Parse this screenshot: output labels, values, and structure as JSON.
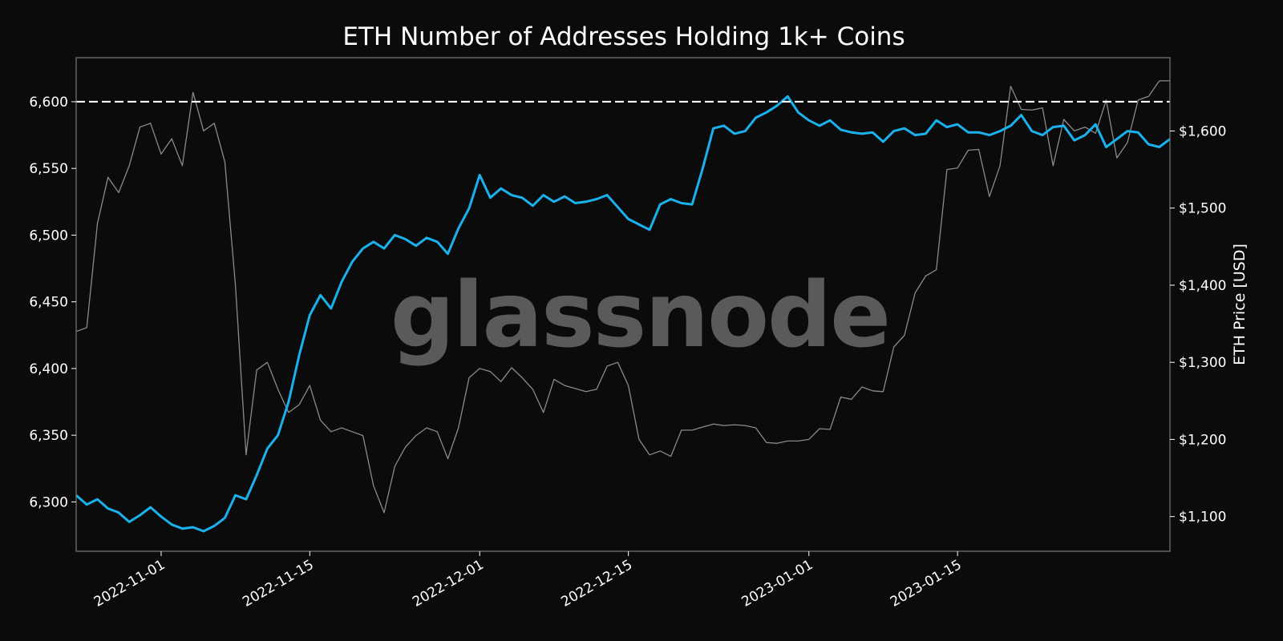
{
  "chart_data": {
    "type": "line",
    "title": "ETH Number of Addresses Holding 1k+ Coins",
    "watermark": "glassnode",
    "xlabel": "",
    "ylabel": "",
    "y2label": "ETH Price [USD]",
    "xlim": [
      "2022-10-24",
      "2023-02-04"
    ],
    "ylim": [
      6263,
      6633
    ],
    "y2lim": [
      1055,
      1695
    ],
    "x_ticks": [
      "2022-11-01",
      "2022-11-15",
      "2022-12-01",
      "2022-12-15",
      "2023-01-01",
      "2023-01-15"
    ],
    "y_ticks": [
      6300,
      6350,
      6400,
      6450,
      6500,
      6550,
      6600
    ],
    "y_tick_labels": [
      "6,300",
      "6,350",
      "6,400",
      "6,450",
      "6,500",
      "6,550",
      "6,600"
    ],
    "y2_ticks": [
      1100,
      1200,
      1300,
      1400,
      1500,
      1600
    ],
    "y2_tick_labels": [
      "$1,100",
      "$1,200",
      "$1,300",
      "$1,400",
      "$1,500",
      "$1,600"
    ],
    "reference_line": {
      "y": 6600,
      "style": "dashed",
      "color": "#ffffff"
    },
    "grid": false,
    "colors": {
      "background": "#0b0b0b",
      "addresses": "#1ab1ed",
      "price": "#8a8a8a",
      "axes": "#777777"
    },
    "series": [
      {
        "axis": "left",
        "points": [
          [
            "2022-10-24",
            6305
          ],
          [
            "2022-10-25",
            6298
          ],
          [
            "2022-10-26",
            6302
          ],
          [
            "2022-10-27",
            6295
          ],
          [
            "2022-10-28",
            6292
          ],
          [
            "2022-10-29",
            6285
          ],
          [
            "2022-10-30",
            6290
          ],
          [
            "2022-10-31",
            6296
          ],
          [
            "2022-11-01",
            6289
          ],
          [
            "2022-11-02",
            6283
          ],
          [
            "2022-11-03",
            6280
          ],
          [
            "2022-11-04",
            6281
          ],
          [
            "2022-11-05",
            6278
          ],
          [
            "2022-11-06",
            6282
          ],
          [
            "2022-11-07",
            6288
          ],
          [
            "2022-11-08",
            6305
          ],
          [
            "2022-11-09",
            6302
          ],
          [
            "2022-11-10",
            6320
          ],
          [
            "2022-11-11",
            6340
          ],
          [
            "2022-11-12",
            6350
          ],
          [
            "2022-11-13",
            6375
          ],
          [
            "2022-11-14",
            6410
          ],
          [
            "2022-11-15",
            6440
          ],
          [
            "2022-11-16",
            6455
          ],
          [
            "2022-11-17",
            6445
          ],
          [
            "2022-11-18",
            6465
          ],
          [
            "2022-11-19",
            6480
          ],
          [
            "2022-11-20",
            6490
          ],
          [
            "2022-11-21",
            6495
          ],
          [
            "2022-11-22",
            6490
          ],
          [
            "2022-11-23",
            6500
          ],
          [
            "2022-11-24",
            6497
          ],
          [
            "2022-11-25",
            6492
          ],
          [
            "2022-11-26",
            6498
          ],
          [
            "2022-11-27",
            6495
          ],
          [
            "2022-11-28",
            6486
          ],
          [
            "2022-11-29",
            6505
          ],
          [
            "2022-11-30",
            6520
          ],
          [
            "2022-12-01",
            6545
          ],
          [
            "2022-12-02",
            6528
          ],
          [
            "2022-12-03",
            6535
          ],
          [
            "2022-12-04",
            6530
          ],
          [
            "2022-12-05",
            6528
          ],
          [
            "2022-12-06",
            6522
          ],
          [
            "2022-12-07",
            6530
          ],
          [
            "2022-12-08",
            6525
          ],
          [
            "2022-12-09",
            6529
          ],
          [
            "2022-12-10",
            6524
          ],
          [
            "2022-12-11",
            6525
          ],
          [
            "2022-12-12",
            6527
          ],
          [
            "2022-12-13",
            6530
          ],
          [
            "2022-12-14",
            6521
          ],
          [
            "2022-12-15",
            6512
          ],
          [
            "2022-12-16",
            6508
          ],
          [
            "2022-12-17",
            6504
          ],
          [
            "2022-12-18",
            6523
          ],
          [
            "2022-12-19",
            6527
          ],
          [
            "2022-12-20",
            6524
          ],
          [
            "2022-12-21",
            6523
          ],
          [
            "2022-12-22",
            6550
          ],
          [
            "2022-12-23",
            6580
          ],
          [
            "2022-12-24",
            6582
          ],
          [
            "2022-12-25",
            6576
          ],
          [
            "2022-12-26",
            6578
          ],
          [
            "2022-12-27",
            6588
          ],
          [
            "2022-12-28",
            6592
          ],
          [
            "2022-12-29",
            6597
          ],
          [
            "2022-12-30",
            6604
          ],
          [
            "2022-12-31",
            6592
          ],
          [
            "2023-01-01",
            6586
          ],
          [
            "2023-01-02",
            6582
          ],
          [
            "2023-01-03",
            6586
          ],
          [
            "2023-01-04",
            6579
          ],
          [
            "2023-01-05",
            6577
          ],
          [
            "2023-01-06",
            6576
          ],
          [
            "2023-01-07",
            6577
          ],
          [
            "2023-01-08",
            6570
          ],
          [
            "2023-01-09",
            6578
          ],
          [
            "2023-01-10",
            6580
          ],
          [
            "2023-01-11",
            6575
          ],
          [
            "2023-01-12",
            6576
          ],
          [
            "2023-01-13",
            6586
          ],
          [
            "2023-01-14",
            6581
          ],
          [
            "2023-01-15",
            6583
          ],
          [
            "2023-01-16",
            6577
          ],
          [
            "2023-01-17",
            6577
          ],
          [
            "2023-01-18",
            6575
          ],
          [
            "2023-01-19",
            6578
          ],
          [
            "2023-01-20",
            6582
          ],
          [
            "2023-01-21",
            6590
          ],
          [
            "2023-01-22",
            6578
          ],
          [
            "2023-01-23",
            6575
          ],
          [
            "2023-01-24",
            6581
          ],
          [
            "2023-01-25",
            6582
          ],
          [
            "2023-01-26",
            6571
          ],
          [
            "2023-01-27",
            6575
          ],
          [
            "2023-01-28",
            6583
          ],
          [
            "2023-01-29",
            6566
          ],
          [
            "2023-01-30",
            6572
          ],
          [
            "2023-01-31",
            6578
          ],
          [
            "2023-02-01",
            6577
          ],
          [
            "2023-02-02",
            6568
          ],
          [
            "2023-02-03",
            6566
          ],
          [
            "2023-02-04",
            6572
          ]
        ]
      },
      {
        "axis": "right",
        "points": [
          [
            "2022-10-24",
            1340
          ],
          [
            "2022-10-25",
            1345
          ],
          [
            "2022-10-26",
            1480
          ],
          [
            "2022-10-27",
            1540
          ],
          [
            "2022-10-28",
            1520
          ],
          [
            "2022-10-29",
            1555
          ],
          [
            "2022-10-30",
            1605
          ],
          [
            "2022-10-31",
            1610
          ],
          [
            "2022-11-01",
            1570
          ],
          [
            "2022-11-02",
            1590
          ],
          [
            "2022-11-03",
            1555
          ],
          [
            "2022-11-04",
            1650
          ],
          [
            "2022-11-05",
            1600
          ],
          [
            "2022-11-06",
            1610
          ],
          [
            "2022-11-07",
            1560
          ],
          [
            "2022-11-08",
            1400
          ],
          [
            "2022-11-09",
            1180
          ],
          [
            "2022-11-10",
            1290
          ],
          [
            "2022-11-11",
            1300
          ],
          [
            "2022-11-12",
            1265
          ],
          [
            "2022-11-13",
            1235
          ],
          [
            "2022-11-14",
            1245
          ],
          [
            "2022-11-15",
            1270
          ],
          [
            "2022-11-16",
            1225
          ],
          [
            "2022-11-17",
            1210
          ],
          [
            "2022-11-18",
            1215
          ],
          [
            "2022-11-19",
            1210
          ],
          [
            "2022-11-20",
            1205
          ],
          [
            "2022-11-21",
            1140
          ],
          [
            "2022-11-22",
            1105
          ],
          [
            "2022-11-23",
            1165
          ],
          [
            "2022-11-24",
            1190
          ],
          [
            "2022-11-25",
            1205
          ],
          [
            "2022-11-26",
            1215
          ],
          [
            "2022-11-27",
            1210
          ],
          [
            "2022-11-28",
            1175
          ],
          [
            "2022-11-29",
            1215
          ],
          [
            "2022-11-30",
            1280
          ],
          [
            "2022-12-01",
            1292
          ],
          [
            "2022-12-02",
            1288
          ],
          [
            "2022-12-03",
            1275
          ],
          [
            "2022-12-04",
            1293
          ],
          [
            "2022-12-05",
            1280
          ],
          [
            "2022-12-06",
            1265
          ],
          [
            "2022-12-07",
            1235
          ],
          [
            "2022-12-08",
            1278
          ],
          [
            "2022-12-09",
            1270
          ],
          [
            "2022-12-10",
            1266
          ],
          [
            "2022-12-11",
            1262
          ],
          [
            "2022-12-12",
            1265
          ],
          [
            "2022-12-13",
            1295
          ],
          [
            "2022-12-14",
            1300
          ],
          [
            "2022-12-15",
            1270
          ],
          [
            "2022-12-16",
            1200
          ],
          [
            "2022-12-17",
            1180
          ],
          [
            "2022-12-18",
            1185
          ],
          [
            "2022-12-19",
            1178
          ],
          [
            "2022-12-20",
            1212
          ],
          [
            "2022-12-21",
            1212
          ],
          [
            "2022-12-22",
            1216
          ],
          [
            "2022-12-23",
            1220
          ],
          [
            "2022-12-24",
            1218
          ],
          [
            "2022-12-25",
            1219
          ],
          [
            "2022-12-26",
            1218
          ],
          [
            "2022-12-27",
            1215
          ],
          [
            "2022-12-28",
            1196
          ],
          [
            "2022-12-29",
            1195
          ],
          [
            "2022-12-30",
            1198
          ],
          [
            "2022-12-31",
            1198
          ],
          [
            "2023-01-01",
            1200
          ],
          [
            "2023-01-02",
            1214
          ],
          [
            "2023-01-03",
            1213
          ],
          [
            "2023-01-04",
            1255
          ],
          [
            "2023-01-05",
            1252
          ],
          [
            "2023-01-06",
            1268
          ],
          [
            "2023-01-07",
            1263
          ],
          [
            "2023-01-08",
            1262
          ],
          [
            "2023-01-09",
            1320
          ],
          [
            "2023-01-10",
            1335
          ],
          [
            "2023-01-11",
            1390
          ],
          [
            "2023-01-12",
            1412
          ],
          [
            "2023-01-13",
            1420
          ],
          [
            "2023-01-14",
            1550
          ],
          [
            "2023-01-15",
            1552
          ],
          [
            "2023-01-16",
            1575
          ],
          [
            "2023-01-17",
            1576
          ],
          [
            "2023-01-18",
            1515
          ],
          [
            "2023-01-19",
            1555
          ],
          [
            "2023-01-20",
            1658
          ],
          [
            "2023-01-21",
            1628
          ],
          [
            "2023-01-22",
            1627
          ],
          [
            "2023-01-23",
            1630
          ],
          [
            "2023-01-24",
            1555
          ],
          [
            "2023-01-25",
            1615
          ],
          [
            "2023-01-26",
            1600
          ],
          [
            "2023-01-27",
            1605
          ],
          [
            "2023-01-28",
            1597
          ],
          [
            "2023-01-29",
            1640
          ],
          [
            "2023-01-30",
            1565
          ],
          [
            "2023-01-31",
            1585
          ],
          [
            "2023-02-01",
            1640
          ],
          [
            "2023-02-02",
            1645
          ],
          [
            "2023-02-03",
            1665
          ],
          [
            "2023-02-04",
            1665
          ]
        ]
      }
    ]
  }
}
